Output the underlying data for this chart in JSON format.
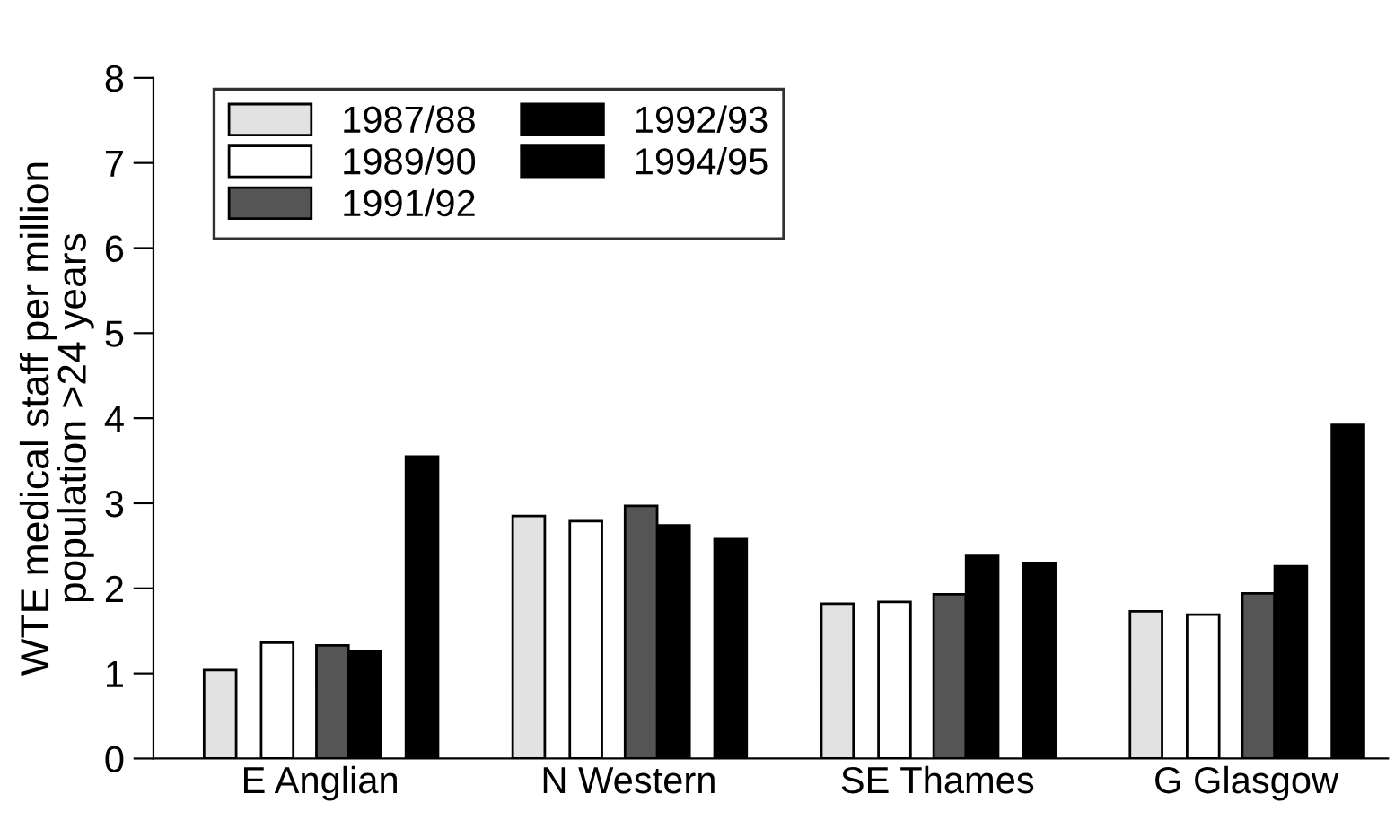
{
  "chart_data": {
    "type": "bar",
    "ylabel": "WTE medical staff per million\npopulation >24 years",
    "categories": [
      "E Anglian",
      "N Western",
      "SE Thames",
      "G Glasgow"
    ],
    "series": [
      {
        "name": "1987/88",
        "color": "#e2e2e2",
        "values": [
          1.04,
          2.85,
          1.82,
          1.73
        ]
      },
      {
        "name": "1989/90",
        "color": "#ffffff",
        "values": [
          1.36,
          2.79,
          1.84,
          1.69
        ]
      },
      {
        "name": "1991/92",
        "color": "#555555",
        "values": [
          1.33,
          2.97,
          1.93,
          1.94
        ]
      },
      {
        "name": "1992/93",
        "color": "#000000",
        "values": [
          1.26,
          2.74,
          2.38,
          2.26
        ]
      },
      {
        "name": "1994/95",
        "color": "#000000",
        "values": [
          3.55,
          2.58,
          2.3,
          3.92
        ]
      }
    ],
    "ylim": [
      0,
      8
    ],
    "yticks": [
      0,
      1,
      2,
      3,
      4,
      5,
      6,
      7,
      8
    ],
    "grid": false,
    "legend": "top left"
  }
}
